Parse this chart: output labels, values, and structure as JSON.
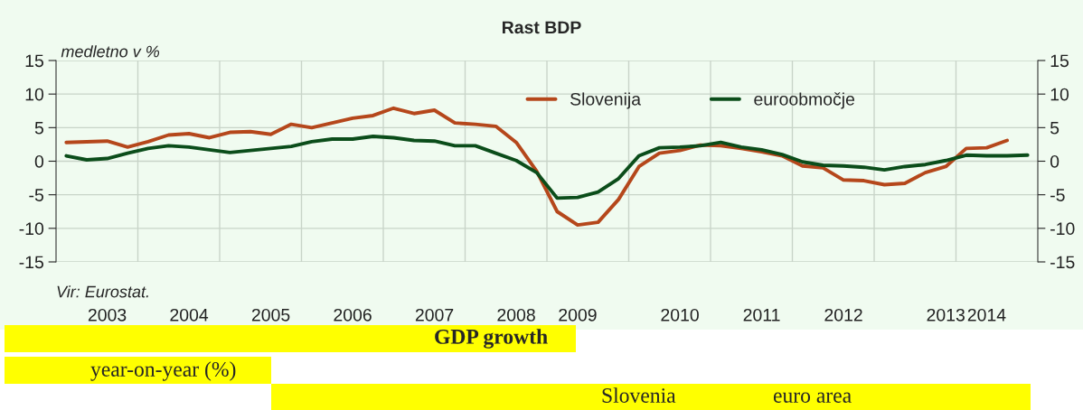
{
  "chart_data": {
    "type": "line",
    "title": "Rast BDP",
    "ylabel": "medletno v %",
    "categories": [
      null,
      null,
      "2003",
      null,
      null,
      null,
      "2004",
      null,
      null,
      null,
      "2005",
      null,
      null,
      null,
      "2006",
      null,
      null,
      null,
      "2007",
      null,
      null,
      null,
      "2008",
      null,
      null,
      "2009",
      null,
      null,
      null,
      null,
      "2010",
      null,
      null,
      null,
      "2011",
      null,
      null,
      null,
      "2012",
      null,
      null,
      null,
      null,
      "2013",
      null,
      "2014",
      null,
      null
    ],
    "series": [
      {
        "name": "Slovenija",
        "color": "#b5471b",
        "values": [
          2.8,
          2.9,
          3.0,
          2.1,
          2.9,
          3.9,
          4.1,
          3.5,
          4.3,
          4.4,
          4.0,
          5.5,
          5.0,
          5.7,
          6.4,
          6.8,
          7.9,
          7.1,
          7.6,
          5.7,
          5.5,
          5.2,
          2.8,
          -1.5,
          -7.5,
          -9.5,
          -9.1,
          -5.7,
          -0.8,
          1.2,
          1.6,
          2.4,
          2.3,
          1.9,
          1.4,
          0.8,
          -0.7,
          -1.0,
          -2.8,
          -2.9,
          -3.5,
          -3.3,
          -1.7,
          -0.8,
          1.9,
          2.0,
          3.1,
          null
        ]
      },
      {
        "name": "euroobmočje",
        "color": "#0b4d1a",
        "values": [
          0.8,
          0.2,
          0.4,
          1.2,
          1.9,
          2.3,
          2.1,
          1.7,
          1.3,
          1.6,
          1.9,
          2.2,
          2.9,
          3.3,
          3.3,
          3.7,
          3.5,
          3.1,
          3.0,
          2.3,
          2.3,
          1.2,
          0.1,
          -1.7,
          -5.5,
          -5.4,
          -4.6,
          -2.6,
          0.8,
          2.0,
          2.1,
          2.3,
          2.8,
          2.1,
          1.7,
          1.0,
          -0.1,
          -0.6,
          -0.7,
          -0.9,
          -1.3,
          -0.8,
          -0.5,
          0.1,
          0.9,
          0.8,
          0.8,
          0.9
        ]
      }
    ],
    "ylim": [
      -15,
      15
    ],
    "yticks": [
      -15,
      -10,
      -5,
      0,
      5,
      10,
      15
    ],
    "y2lim": [
      -15,
      15
    ],
    "y2ticks": [
      -15,
      -10,
      -5,
      0,
      5,
      10,
      15
    ],
    "grid": true,
    "legend": "top right",
    "marker": "none",
    "line_style": "solid",
    "annotations": [
      "Vir: Eurostat.",
      "GDP growth",
      "year-on-year (%)",
      "Slovenia",
      "euro area"
    ]
  }
}
